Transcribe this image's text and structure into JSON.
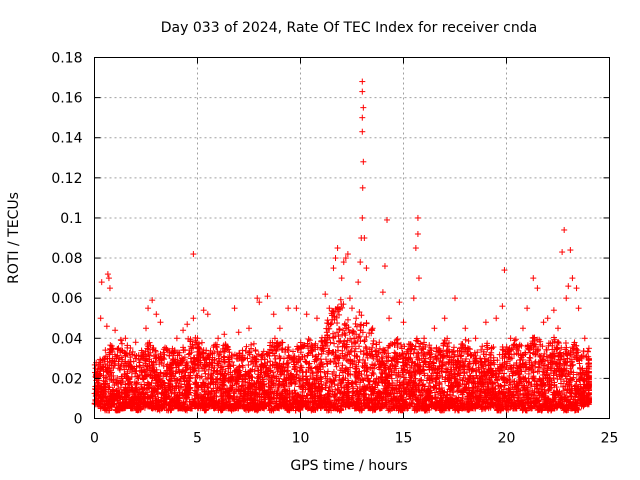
{
  "chart_data": {
    "type": "scatter",
    "title": "Day 033 of 2024, Rate Of TEC Index for receiver cnda",
    "xlabel": "GPS time / hours",
    "ylabel": "ROTI / TECUs",
    "xlim": [
      0,
      25
    ],
    "ylim": [
      0,
      0.18
    ],
    "xticks": [
      0,
      5,
      10,
      15,
      20,
      25
    ],
    "yticks": [
      0,
      0.02,
      0.04,
      0.06,
      0.08,
      0.1,
      0.12,
      0.14,
      0.16,
      0.18
    ],
    "xtick_labels": [
      "0",
      "5",
      "10",
      "15",
      "20",
      "25"
    ],
    "ytick_labels": [
      "0",
      "0.02",
      "0.04",
      "0.06",
      "0.08",
      "0.1",
      "0.12",
      "0.14",
      "0.16",
      "0.18"
    ],
    "grid": true,
    "marker": "+",
    "series": [
      {
        "name": "ROTI",
        "color": "#ff0000",
        "points": [
          [
            0.1,
            0.012
          ],
          [
            0.2,
            0.02
          ],
          [
            0.3,
            0.05
          ],
          [
            0.35,
            0.068
          ],
          [
            0.5,
            0.03
          ],
          [
            0.6,
            0.046
          ],
          [
            0.65,
            0.072
          ],
          [
            0.7,
            0.07
          ],
          [
            0.75,
            0.065
          ],
          [
            0.9,
            0.035
          ],
          [
            1.0,
            0.044
          ],
          [
            1.2,
            0.025
          ],
          [
            1.5,
            0.04
          ],
          [
            2.0,
            0.038
          ],
          [
            2.5,
            0.045
          ],
          [
            2.6,
            0.055
          ],
          [
            2.8,
            0.059
          ],
          [
            3.0,
            0.052
          ],
          [
            3.2,
            0.048
          ],
          [
            3.5,
            0.035
          ],
          [
            4.0,
            0.04
          ],
          [
            4.3,
            0.044
          ],
          [
            4.5,
            0.047
          ],
          [
            4.8,
            0.05
          ],
          [
            4.8,
            0.082
          ],
          [
            5.0,
            0.04
          ],
          [
            5.3,
            0.054
          ],
          [
            5.5,
            0.052
          ],
          [
            6.0,
            0.04
          ],
          [
            6.3,
            0.042
          ],
          [
            6.8,
            0.055
          ],
          [
            7.0,
            0.043
          ],
          [
            7.5,
            0.045
          ],
          [
            7.9,
            0.06
          ],
          [
            8.0,
            0.058
          ],
          [
            8.4,
            0.061
          ],
          [
            8.7,
            0.052
          ],
          [
            9.0,
            0.045
          ],
          [
            9.4,
            0.055
          ],
          [
            9.8,
            0.055
          ],
          [
            10.3,
            0.052
          ],
          [
            10.8,
            0.05
          ],
          [
            11.2,
            0.062
          ],
          [
            11.4,
            0.055
          ],
          [
            11.6,
            0.075
          ],
          [
            11.7,
            0.08
          ],
          [
            11.8,
            0.085
          ],
          [
            12.0,
            0.07
          ],
          [
            12.1,
            0.078
          ],
          [
            12.2,
            0.08
          ],
          [
            12.3,
            0.082
          ],
          [
            12.4,
            0.06
          ],
          [
            12.5,
            0.055
          ],
          [
            12.6,
            0.04
          ],
          [
            12.7,
            0.05
          ],
          [
            12.8,
            0.068
          ],
          [
            12.9,
            0.078
          ],
          [
            12.95,
            0.09
          ],
          [
            13.0,
            0.1
          ],
          [
            13.02,
            0.115
          ],
          [
            13.05,
            0.128
          ],
          [
            13.0,
            0.143
          ],
          [
            13.0,
            0.15
          ],
          [
            13.05,
            0.155
          ],
          [
            13.0,
            0.163
          ],
          [
            13.0,
            0.168
          ],
          [
            13.1,
            0.09
          ],
          [
            13.2,
            0.075
          ],
          [
            13.5,
            0.045
          ],
          [
            14.0,
            0.063
          ],
          [
            14.1,
            0.076
          ],
          [
            14.2,
            0.099
          ],
          [
            14.3,
            0.05
          ],
          [
            14.8,
            0.058
          ],
          [
            15.0,
            0.048
          ],
          [
            15.5,
            0.06
          ],
          [
            15.6,
            0.085
          ],
          [
            15.7,
            0.092
          ],
          [
            15.7,
            0.1
          ],
          [
            15.75,
            0.07
          ],
          [
            16.0,
            0.04
          ],
          [
            16.5,
            0.045
          ],
          [
            17.0,
            0.05
          ],
          [
            17.5,
            0.06
          ],
          [
            18.0,
            0.045
          ],
          [
            18.5,
            0.04
          ],
          [
            19.0,
            0.048
          ],
          [
            19.5,
            0.05
          ],
          [
            19.8,
            0.056
          ],
          [
            19.9,
            0.074
          ],
          [
            20.2,
            0.04
          ],
          [
            20.8,
            0.045
          ],
          [
            21.0,
            0.055
          ],
          [
            21.3,
            0.07
          ],
          [
            21.5,
            0.065
          ],
          [
            21.8,
            0.048
          ],
          [
            22.0,
            0.05
          ],
          [
            22.3,
            0.054
          ],
          [
            22.5,
            0.045
          ],
          [
            22.7,
            0.083
          ],
          [
            22.8,
            0.094
          ],
          [
            22.9,
            0.06
          ],
          [
            23.0,
            0.066
          ],
          [
            23.1,
            0.084
          ],
          [
            23.2,
            0.07
          ],
          [
            23.4,
            0.065
          ],
          [
            23.5,
            0.055
          ],
          [
            23.8,
            0.04
          ],
          [
            24.0,
            0.035
          ]
        ],
        "band": {
          "description": "dense cluster of points",
          "x_start": 0,
          "x_end": 24,
          "x_step": 0.25,
          "lower": [
            0.007,
            0.005,
            0.004,
            0.006,
            0.004,
            0.005,
            0.006,
            0.005,
            0.004,
            0.005,
            0.006,
            0.005,
            0.004,
            0.005,
            0.004,
            0.006,
            0.005,
            0.004,
            0.005,
            0.006,
            0.005,
            0.004,
            0.006,
            0.005,
            0.004,
            0.005,
            0.004,
            0.005,
            0.006,
            0.004,
            0.005,
            0.004,
            0.005,
            0.006,
            0.004,
            0.005,
            0.006,
            0.004,
            0.005,
            0.004,
            0.006,
            0.005,
            0.004,
            0.005,
            0.006,
            0.004,
            0.005,
            0.004,
            0.005,
            0.006,
            0.005,
            0.004,
            0.006,
            0.005,
            0.004,
            0.005,
            0.006,
            0.004,
            0.005,
            0.004,
            0.005,
            0.006,
            0.004,
            0.005,
            0.004,
            0.006,
            0.005,
            0.004,
            0.005,
            0.006,
            0.004,
            0.005,
            0.004,
            0.005,
            0.006,
            0.004,
            0.005,
            0.006,
            0.004,
            0.005,
            0.004,
            0.005,
            0.006,
            0.004,
            0.005,
            0.006,
            0.004,
            0.005,
            0.004,
            0.005,
            0.006,
            0.004,
            0.005,
            0.004,
            0.006,
            0.007,
            0.008
          ],
          "upper": [
            0.028,
            0.03,
            0.035,
            0.038,
            0.036,
            0.04,
            0.038,
            0.034,
            0.032,
            0.035,
            0.038,
            0.036,
            0.034,
            0.037,
            0.038,
            0.035,
            0.033,
            0.036,
            0.04,
            0.042,
            0.038,
            0.036,
            0.034,
            0.037,
            0.035,
            0.038,
            0.036,
            0.032,
            0.034,
            0.036,
            0.038,
            0.035,
            0.034,
            0.036,
            0.038,
            0.04,
            0.038,
            0.036,
            0.034,
            0.036,
            0.038,
            0.04,
            0.038,
            0.036,
            0.042,
            0.05,
            0.055,
            0.06,
            0.058,
            0.05,
            0.048,
            0.055,
            0.05,
            0.045,
            0.04,
            0.038,
            0.036,
            0.038,
            0.04,
            0.038,
            0.036,
            0.038,
            0.04,
            0.038,
            0.036,
            0.038,
            0.036,
            0.038,
            0.04,
            0.036,
            0.035,
            0.038,
            0.04,
            0.036,
            0.035,
            0.037,
            0.039,
            0.036,
            0.034,
            0.036,
            0.038,
            0.04,
            0.038,
            0.036,
            0.038,
            0.042,
            0.04,
            0.038,
            0.04,
            0.042,
            0.04,
            0.038,
            0.036,
            0.038,
            0.036,
            0.034,
            0.03
          ]
        }
      }
    ]
  }
}
